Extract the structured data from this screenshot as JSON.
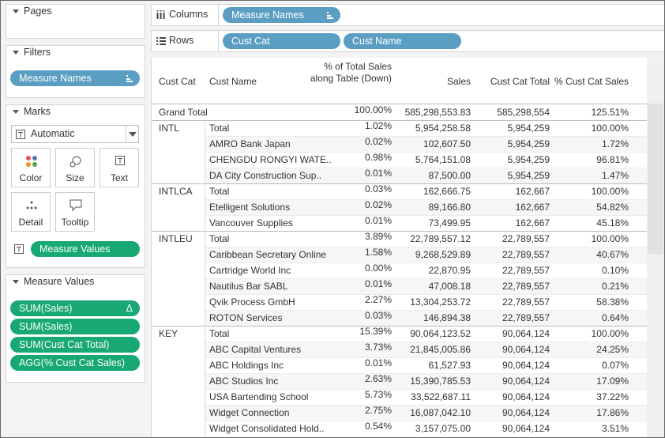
{
  "pages": {
    "title": "Pages"
  },
  "filters": {
    "title": "Filters",
    "pills": [
      "Measure Names"
    ]
  },
  "marks": {
    "title": "Marks",
    "type": "Automatic",
    "buttons": [
      "Color",
      "Size",
      "Text",
      "Detail",
      "Tooltip"
    ],
    "pills": [
      "Measure Values"
    ]
  },
  "measure_values": {
    "title": "Measure Values",
    "pills": [
      {
        "label": "SUM(Sales)",
        "flag": "Δ"
      },
      {
        "label": "SUM(Sales)"
      },
      {
        "label": "SUM(Cust Cat Total)"
      },
      {
        "label": "AGG(% Cust Cat Sales)"
      }
    ]
  },
  "shelves": {
    "columns": {
      "title": "Columns",
      "pills": [
        "Measure Names"
      ]
    },
    "rows": {
      "title": "Rows",
      "pills": [
        "Cust Cat",
        "Cust Name"
      ]
    }
  },
  "table": {
    "headers": [
      "Cust Cat",
      "Cust Name",
      "% of Total Sales along Table (Down)",
      "Sales",
      "Cust Cat Total",
      "% Cust Cat Sales"
    ],
    "grand_total": {
      "label": "Grand Total",
      "cells": [
        "100.00%",
        "585,298,553.83",
        "585,298,554",
        "125.51%"
      ]
    },
    "groups": [
      {
        "name": "INTL",
        "rows": [
          [
            "Total",
            "1.02%",
            "5,954,258.58",
            "5,954,259",
            "100.00%"
          ],
          [
            "AMRO Bank Japan",
            "0.02%",
            "102,607.50",
            "5,954,259",
            "1.72%"
          ],
          [
            "CHENGDU RONGYI WATE..",
            "0.98%",
            "5,764,151.08",
            "5,954,259",
            "96.81%"
          ],
          [
            "DA City Construction Sup..",
            "0.01%",
            "87,500.00",
            "5,954,259",
            "1.47%"
          ]
        ]
      },
      {
        "name": "INTLCA",
        "rows": [
          [
            "Total",
            "0.03%",
            "162,666.75",
            "162,667",
            "100.00%"
          ],
          [
            "Etelligent Solutions",
            "0.02%",
            "89,166.80",
            "162,667",
            "54.82%"
          ],
          [
            "Vancouver Supplies",
            "0.01%",
            "73,499.95",
            "162,667",
            "45.18%"
          ]
        ]
      },
      {
        "name": "INTLEU",
        "rows": [
          [
            "Total",
            "3.89%",
            "22,789,557.12",
            "22,789,557",
            "100.00%"
          ],
          [
            "Caribbean Secretary Online",
            "1.58%",
            "9,268,529.89",
            "22,789,557",
            "40.67%"
          ],
          [
            "Cartridge World Inc",
            "0.00%",
            "22,870.95",
            "22,789,557",
            "0.10%"
          ],
          [
            "Nautilus Bar SABL",
            "0.01%",
            "47,008.18",
            "22,789,557",
            "0.21%"
          ],
          [
            "Qvik Process GmbH",
            "2.27%",
            "13,304,253.72",
            "22,789,557",
            "58.38%"
          ],
          [
            "ROTON Services",
            "0.03%",
            "146,894.38",
            "22,789,557",
            "0.64%"
          ]
        ]
      },
      {
        "name": "KEY",
        "rows": [
          [
            "Total",
            "15.39%",
            "90,064,123.52",
            "90,064,124",
            "100.00%"
          ],
          [
            "ABC Capital Ventures",
            "3.73%",
            "21,845,005.86",
            "90,064,124",
            "24.25%"
          ],
          [
            "ABC Holdings Inc",
            "0.01%",
            "61,527.93",
            "90,064,124",
            "0.07%"
          ],
          [
            "ABC Studios Inc",
            "2.63%",
            "15,390,785.53",
            "90,064,124",
            "17.09%"
          ],
          [
            "USA Bartending School",
            "5.73%",
            "33,522,687.11",
            "90,064,124",
            "37.22%"
          ],
          [
            "Widget Connection",
            "2.75%",
            "16,087,042.10",
            "90,064,124",
            "17.86%"
          ],
          [
            "Widget Consolidated Hold..",
            "0.54%",
            "3,157,075.00",
            "90,064,124",
            "3.51%"
          ]
        ]
      }
    ]
  }
}
